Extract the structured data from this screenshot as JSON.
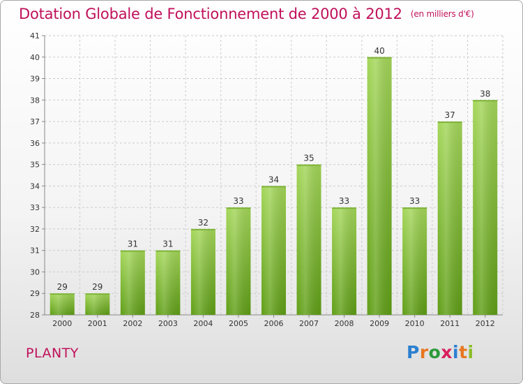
{
  "title": "Dotation Globale de Fonctionnement de 2000 à 2012",
  "unit_note": "(en milliers d'€)",
  "commune": "PLANTY",
  "logo": {
    "text": "Proxiti",
    "letters": [
      "P",
      "r",
      "o",
      "x",
      "i",
      "t",
      "i"
    ],
    "colors": [
      "#2b7fd0",
      "#e87722",
      "#2b9a3b",
      "#d81f5e",
      "#2b7fd0",
      "#e87722",
      "#8bbd2a"
    ]
  },
  "colors": {
    "bar_top": "#a4d65a",
    "bar_bottom": "#5f9e16",
    "title": "#c0105a",
    "grid": "#cccccc",
    "axis": "#888888"
  },
  "chart_data": {
    "type": "bar",
    "title": "Dotation Globale de Fonctionnement de 2000 à 2012",
    "subtitle": "(en milliers d'€)",
    "xlabel": "",
    "ylabel": "",
    "categories": [
      "2000",
      "2001",
      "2002",
      "2003",
      "2004",
      "2005",
      "2006",
      "2007",
      "2008",
      "2009",
      "2010",
      "2011",
      "2012"
    ],
    "values": [
      29,
      29,
      31,
      31,
      32,
      33,
      34,
      35,
      33,
      40,
      33,
      37,
      38
    ],
    "ylim": [
      28,
      41
    ],
    "yticks": [
      28,
      29,
      30,
      31,
      32,
      33,
      34,
      35,
      36,
      37,
      38,
      39,
      40,
      41
    ],
    "grid": true,
    "legend": "none"
  }
}
